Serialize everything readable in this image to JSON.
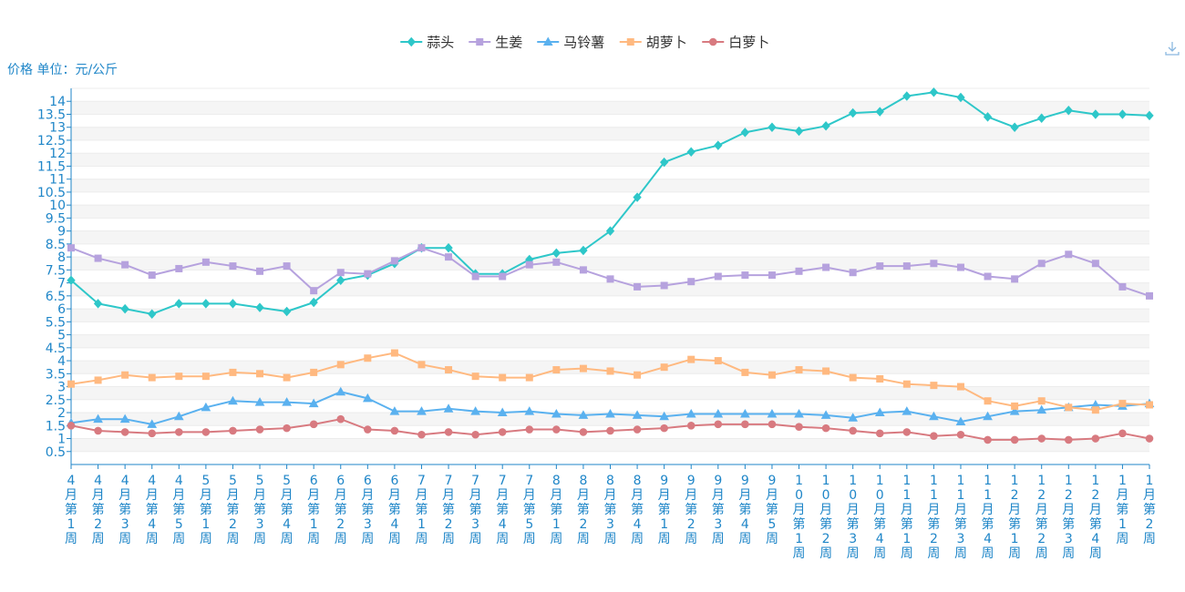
{
  "chart_data": {
    "type": "line",
    "ylabel": "价格 单位：元/公斤",
    "ylim": [
      0.5,
      14.5
    ],
    "yticks": [
      0.5,
      1,
      1.5,
      2,
      2.5,
      3,
      3.5,
      4,
      4.5,
      5,
      5.5,
      6,
      6.5,
      7,
      7.5,
      8,
      8.5,
      9,
      9.5,
      10,
      10.5,
      11,
      11.5,
      12,
      12.5,
      13,
      13.5,
      14
    ],
    "grid": true,
    "legend_position": "top-center",
    "categories": [
      "4月第1周",
      "4月第2周",
      "4月第3周",
      "4月第4周",
      "4月第5周",
      "5月第1周",
      "5月第2周",
      "5月第3周",
      "5月第4周",
      "6月第1周",
      "6月第2周",
      "6月第3周",
      "6月第4周",
      "7月第1周",
      "7月第2周",
      "7月第3周",
      "7月第4周",
      "7月第5周",
      "8月第1周",
      "8月第2周",
      "8月第3周",
      "8月第4周",
      "9月第1周",
      "9月第2周",
      "9月第3周",
      "9月第4周",
      "9月第5周",
      "10月第1周",
      "10月第2周",
      "10月第3周",
      "10月第4周",
      "11月第1周",
      "11月第2周",
      "11月第3周",
      "11月第4周",
      "12月第1周",
      "12月第2周",
      "12月第3周",
      "12月第4周",
      "1月第1周",
      "1月第2周"
    ],
    "series": [
      {
        "name": "蒜头",
        "color": "#2ec7c9",
        "marker": "diamond",
        "values": [
          7.1,
          6.2,
          6.0,
          5.8,
          6.2,
          6.2,
          6.2,
          6.05,
          5.9,
          6.25,
          7.1,
          7.3,
          7.75,
          8.35,
          8.35,
          7.35,
          7.35,
          7.9,
          8.15,
          8.25,
          9.0,
          10.3,
          11.65,
          12.05,
          12.3,
          12.8,
          13.0,
          12.85,
          13.05,
          13.55,
          13.6,
          14.2,
          14.35,
          14.15,
          13.4,
          13.0,
          13.35,
          13.65,
          13.5,
          13.5,
          13.45
        ]
      },
      {
        "name": "生姜",
        "color": "#b6a2de",
        "marker": "square",
        "values": [
          8.35,
          7.95,
          7.7,
          7.3,
          7.55,
          7.8,
          7.65,
          7.45,
          7.65,
          6.7,
          7.4,
          7.35,
          7.85,
          8.35,
          8.0,
          7.25,
          7.25,
          7.7,
          7.8,
          7.5,
          7.15,
          6.85,
          6.9,
          7.05,
          7.25,
          7.3,
          7.3,
          7.45,
          7.6,
          7.4,
          7.65,
          7.65,
          7.75,
          7.6,
          7.25,
          7.15,
          7.75,
          8.1,
          7.75,
          6.85,
          6.5
        ]
      },
      {
        "name": "马铃薯",
        "color": "#5ab1ef",
        "marker": "triangle",
        "values": [
          1.6,
          1.75,
          1.75,
          1.55,
          1.85,
          2.2,
          2.45,
          2.4,
          2.4,
          2.35,
          2.8,
          2.55,
          2.05,
          2.05,
          2.15,
          2.05,
          2.0,
          2.05,
          1.95,
          1.9,
          1.95,
          1.9,
          1.85,
          1.95,
          1.95,
          1.95,
          1.95,
          1.95,
          1.9,
          1.8,
          2.0,
          2.05,
          1.85,
          1.65,
          1.85,
          2.05,
          2.1,
          2.2,
          2.3,
          2.25,
          2.35
        ]
      },
      {
        "name": "胡萝卜",
        "color": "#ffb980",
        "marker": "square",
        "values": [
          3.1,
          3.25,
          3.45,
          3.35,
          3.4,
          3.4,
          3.55,
          3.5,
          3.35,
          3.55,
          3.85,
          4.1,
          4.3,
          3.85,
          3.65,
          3.4,
          3.35,
          3.35,
          3.65,
          3.7,
          3.6,
          3.45,
          3.75,
          4.05,
          4.0,
          3.55,
          3.45,
          3.65,
          3.6,
          3.35,
          3.3,
          3.1,
          3.05,
          3.0,
          2.45,
          2.25,
          2.45,
          2.2,
          2.1,
          2.35,
          2.3
        ]
      },
      {
        "name": "白萝卜",
        "color": "#d87a80",
        "marker": "circle",
        "values": [
          1.5,
          1.3,
          1.25,
          1.2,
          1.25,
          1.25,
          1.3,
          1.35,
          1.4,
          1.55,
          1.75,
          1.35,
          1.3,
          1.15,
          1.25,
          1.15,
          1.25,
          1.35,
          1.35,
          1.25,
          1.3,
          1.35,
          1.4,
          1.5,
          1.55,
          1.55,
          1.55,
          1.45,
          1.4,
          1.3,
          1.2,
          1.25,
          1.1,
          1.15,
          0.95,
          0.95,
          1.0,
          0.95,
          1.0,
          1.2,
          1.0
        ]
      }
    ]
  }
}
